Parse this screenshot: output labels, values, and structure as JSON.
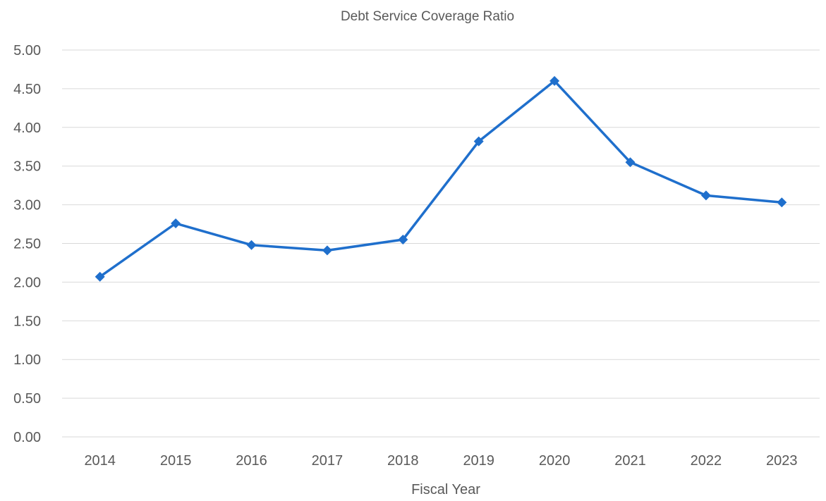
{
  "chart_data": {
    "type": "line",
    "title": "Debt Service Coverage Ratio",
    "xlabel": "Fiscal Year",
    "ylabel": "",
    "categories": [
      "2014",
      "2015",
      "2016",
      "2017",
      "2018",
      "2019",
      "2020",
      "2021",
      "2022",
      "2023"
    ],
    "series": [
      {
        "values": [
          2.07,
          2.76,
          2.48,
          2.41,
          2.55,
          3.82,
          4.6,
          3.55,
          3.12,
          3.03
        ],
        "color": "#1f6fcc",
        "marker": "diamond"
      }
    ],
    "ylim": [
      0,
      5
    ],
    "yticks": [
      "0.00",
      "0.50",
      "1.00",
      "1.50",
      "2.00",
      "2.50",
      "3.00",
      "3.50",
      "4.00",
      "4.50",
      "5.00"
    ],
    "grid": true,
    "legend": "none"
  }
}
